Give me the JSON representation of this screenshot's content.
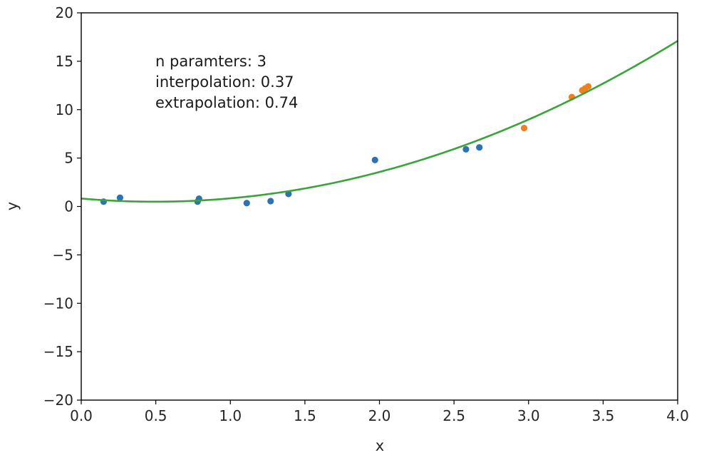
{
  "chart_data": {
    "type": "scatter",
    "xlabel": "x",
    "ylabel": "y",
    "xlim": [
      0.0,
      4.0
    ],
    "ylim": [
      -20,
      20
    ],
    "xticks": [
      "0.0",
      "0.5",
      "1.0",
      "1.5",
      "2.0",
      "2.5",
      "3.0",
      "3.5",
      "4.0"
    ],
    "yticks": [
      "20",
      "15",
      "10",
      "5",
      "0",
      "−5",
      "−10",
      "−15",
      "−20"
    ],
    "grid": false,
    "annotations": [
      "n paramters: 3",
      "interpolation: 0.37",
      "extrapolation: 0.74"
    ],
    "series": [
      {
        "kind": "scatter",
        "color": "#2f72b3",
        "points": [
          [
            0.15,
            0.5
          ],
          [
            0.26,
            0.9
          ],
          [
            0.78,
            0.5
          ],
          [
            0.79,
            0.8
          ],
          [
            1.11,
            0.35
          ],
          [
            1.27,
            0.55
          ],
          [
            1.39,
            1.3
          ],
          [
            1.97,
            4.8
          ],
          [
            2.58,
            5.9
          ],
          [
            2.67,
            6.1
          ]
        ]
      },
      {
        "kind": "scatter",
        "color": "#f07f1e",
        "points": [
          [
            2.97,
            8.1
          ],
          [
            3.29,
            11.3
          ],
          [
            3.36,
            12.0
          ],
          [
            3.38,
            12.2
          ],
          [
            3.4,
            12.4
          ]
        ]
      },
      {
        "kind": "line",
        "color": "#3aa33a",
        "coefficients": [
          0.82,
          -1.33,
          1.35
        ]
      }
    ]
  }
}
